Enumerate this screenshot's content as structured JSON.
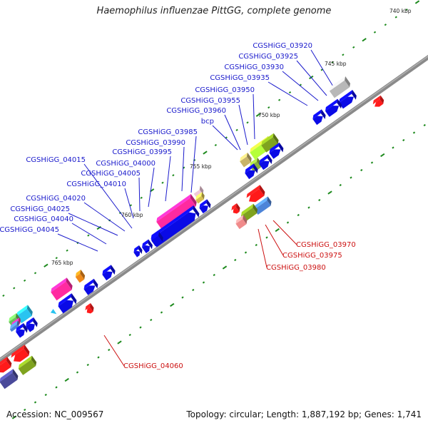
{
  "header": {
    "title": "Haemophilus influenzae PittGG, complete genome"
  },
  "footer": {
    "accession": "Accession: NC_009567",
    "info": "Topology: circular; Length: 1,887,192 bp; Genes: 1,741"
  },
  "colors": {
    "forward_label": "#1a1acc",
    "reverse_label": "#cc1111",
    "backbone": "#777777",
    "tick": "#1d8a1d"
  },
  "scale_labels": [
    "740 kbp",
    "745 kbp",
    "750 kbp",
    "755 kbp",
    "760 kbp",
    "765 kbp"
  ],
  "forward_labels": [
    "CGSHiGG_03920",
    "CGSHiGG_03925",
    "CGSHiGG_03930",
    "CGSHiGG_03935",
    "CGSHiGG_03950",
    "CGSHiGG_03955",
    "CGSHiGG_03960",
    "bcp",
    "CGSHiGG_03985",
    "CGSHiGG_03990",
    "CGSHiGG_03995",
    "CGSHiGG_04000",
    "CGSHiGG_04005",
    "CGSHiGG_04010",
    "CGSHiGG_04015",
    "CGSHiGG_04020",
    "CGSHiGG_04025",
    "CGSHiGG_04040",
    "CGSHiGG_04045"
  ],
  "reverse_labels": [
    "CGSHiGG_03970",
    "CGSHiGG_03975",
    "CGSHiGG_03980",
    "CGSHiGG_04060"
  ]
}
